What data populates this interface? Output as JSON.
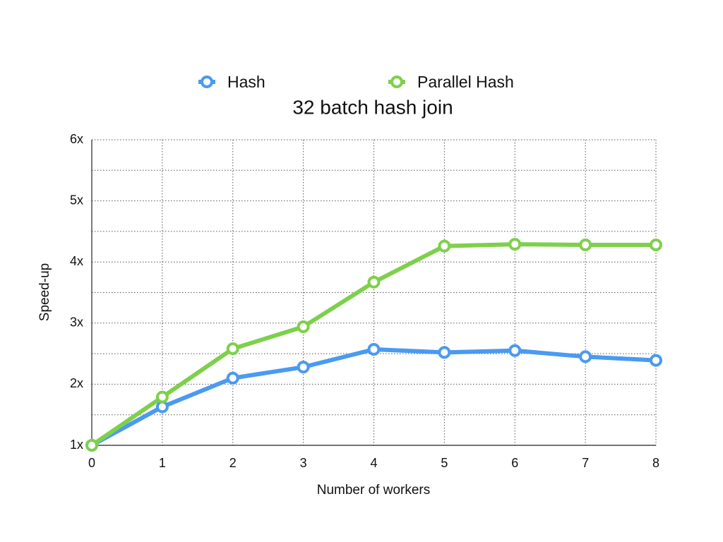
{
  "chart_data": {
    "type": "line",
    "title": "32 batch hash join",
    "x_label": "Number of workers",
    "y_label": "Speed-up",
    "x": [
      0,
      1,
      2,
      3,
      4,
      5,
      6,
      7,
      8
    ],
    "series": [
      {
        "name": "Hash",
        "color": "#4a9af0",
        "values": [
          1.0,
          1.63,
          2.1,
          2.28,
          2.57,
          2.52,
          2.55,
          2.45,
          2.39
        ]
      },
      {
        "name": "Parallel Hash",
        "color": "#7ed04b",
        "values": [
          1.0,
          1.79,
          2.58,
          2.94,
          3.67,
          4.26,
          4.29,
          4.28,
          4.28
        ]
      }
    ],
    "xlim": [
      0,
      8
    ],
    "xticks": [
      0,
      1,
      2,
      3,
      4,
      5,
      6,
      7,
      8
    ],
    "ylim": [
      1,
      6
    ],
    "yticks": [
      {
        "value": 1,
        "label": "1x"
      },
      {
        "value": 2,
        "label": "2x"
      },
      {
        "value": 3,
        "label": "3x"
      },
      {
        "value": 4,
        "label": "4x"
      },
      {
        "value": 5,
        "label": "5x"
      },
      {
        "value": 6,
        "label": "6x"
      }
    ],
    "yminor": [
      1.5,
      2.5,
      3.5,
      4.5,
      5.5
    ],
    "grid": true,
    "legend": "top"
  }
}
